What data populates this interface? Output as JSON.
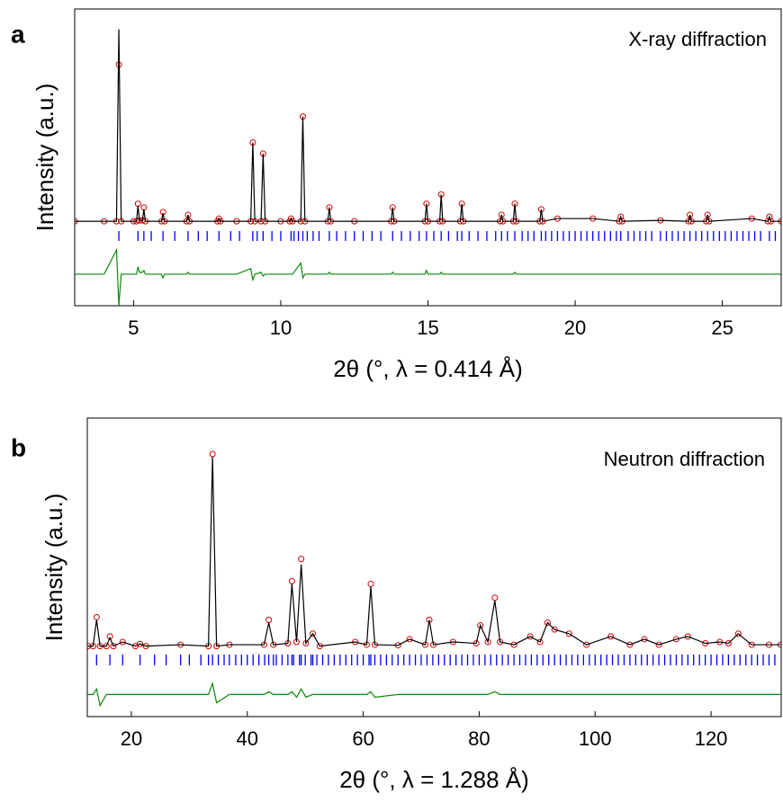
{
  "chart_data": [
    {
      "type": "line",
      "panel_label": "a",
      "title": "X-ray diffraction",
      "xlabel": "2θ (°, λ = 0.414 Å)",
      "ylabel": "Intensity (a.u.)",
      "xlim": [
        3,
        27
      ],
      "ylim": [
        -45,
        115
      ],
      "xticks": [
        5,
        10,
        15,
        20,
        25
      ],
      "x": [
        3,
        4,
        4.42,
        4.5,
        4.58,
        5,
        5.1,
        5.15,
        5.2,
        5.3,
        5.35,
        5.4,
        5.95,
        6,
        6.05,
        6.8,
        6.85,
        6.9,
        7.85,
        7.9,
        7.95,
        8.5,
        8.98,
        9.05,
        9.12,
        9.33,
        9.4,
        9.47,
        10,
        10.3,
        10.35,
        10.4,
        10.68,
        10.75,
        10.82,
        11.6,
        11.65,
        11.7,
        12.5,
        13.75,
        13.8,
        13.85,
        14.9,
        14.95,
        15,
        15.4,
        15.45,
        15.5,
        16.1,
        16.15,
        16.2,
        17.45,
        17.5,
        17.55,
        17.9,
        17.95,
        18,
        18.8,
        18.85,
        18.9,
        19.4,
        20.6,
        21.5,
        21.55,
        21.6,
        22.9,
        23.85,
        23.9,
        23.95,
        24.45,
        24.5,
        24.55,
        26,
        26.55,
        26.6,
        26.65,
        27
      ],
      "series": [
        {
          "style": "markers",
          "color": "#d40000",
          "values": [
            0.5,
            0.5,
            0.5,
            85,
            0.5,
            0.5,
            0.5,
            10,
            1,
            1,
            8,
            0.5,
            0.5,
            5.5,
            0.5,
            0.5,
            4,
            0.5,
            0.5,
            2,
            0.5,
            0.5,
            0.5,
            43,
            0.5,
            0.5,
            37,
            0.5,
            0.5,
            0.5,
            2,
            0.5,
            0.5,
            57,
            0.5,
            0.5,
            8,
            0.5,
            0.5,
            0.5,
            8,
            0.5,
            0.5,
            10,
            0.5,
            0.5,
            15,
            0.5,
            0.5,
            10,
            0.5,
            0.5,
            4,
            0.5,
            0.5,
            10,
            0.5,
            0.5,
            7,
            0.5,
            2,
            2,
            0.5,
            3,
            0.5,
            1,
            0.5,
            4,
            0.5,
            0.5,
            4,
            0.5,
            2,
            0.5,
            3,
            0.5,
            0.5
          ]
        },
        {
          "style": "line",
          "color": "#000000",
          "values": [
            0.5,
            0.5,
            0.5,
            104,
            0.5,
            0.5,
            0.5,
            9,
            1,
            1,
            7,
            0.5,
            0.5,
            5,
            0.5,
            0.5,
            4,
            0.5,
            0.5,
            2,
            0.5,
            0.5,
            0.5,
            43,
            0.5,
            0.5,
            37,
            0.5,
            0.5,
            0.5,
            2,
            0.5,
            0.5,
            57,
            0.5,
            0.5,
            8,
            0.5,
            0.5,
            0.5,
            8,
            0.5,
            0.5,
            10,
            0.5,
            0.5,
            15,
            0.5,
            0.5,
            10,
            0.5,
            0.5,
            4,
            0.5,
            0.5,
            10,
            0.5,
            0.5,
            7,
            0.5,
            2,
            2,
            0.5,
            3,
            0.5,
            1,
            0.5,
            4,
            0.5,
            0.5,
            4,
            0.5,
            2,
            0.5,
            3,
            0.5,
            0.5
          ]
        },
        {
          "style": "line",
          "color": "#0a8a0a",
          "values": [
            -28,
            -28,
            -15,
            -45,
            -28,
            -28,
            -28,
            -24,
            -27,
            -27,
            -26,
            -28,
            -28,
            -30,
            -28,
            -28,
            -27,
            -28,
            -28,
            -28,
            -28,
            -28,
            -25,
            -31,
            -28,
            -27,
            -29,
            -28,
            -28,
            -28,
            -28,
            -28,
            -22,
            -30,
            -28,
            -28,
            -27,
            -28,
            -28,
            -28,
            -27,
            -28,
            -28,
            -26,
            -28,
            -28,
            -27,
            -28,
            -28,
            -28,
            -28,
            -28,
            -28,
            -28,
            -28,
            -27,
            -28,
            -28,
            -28,
            -28,
            -28,
            -28,
            -28,
            -28,
            -28,
            -28,
            -28,
            -28,
            -28,
            -28,
            -28,
            -28,
            -28,
            -28,
            -28,
            -28,
            -28
          ]
        }
      ],
      "reflections": {
        "color": "#0000ff",
        "x": [
          4.5,
          5.15,
          5.35,
          5.6,
          6,
          6.4,
          6.85,
          7.2,
          7.5,
          7.9,
          8.3,
          8.6,
          9.05,
          9.2,
          9.4,
          9.7,
          10,
          10.35,
          10.45,
          10.6,
          10.75,
          10.9,
          11.1,
          11.3,
          11.65,
          11.9,
          12.2,
          12.5,
          12.8,
          13.1,
          13.4,
          13.8,
          14.1,
          14.4,
          14.7,
          14.95,
          15.2,
          15.45,
          15.7,
          16,
          16.15,
          16.4,
          16.7,
          17,
          17.3,
          17.5,
          17.7,
          17.95,
          18.2,
          18.4,
          18.6,
          18.85,
          19,
          19.2,
          19.4,
          19.6,
          19.8,
          20,
          20.2,
          20.4,
          20.6,
          20.8,
          21,
          21.2,
          21.4,
          21.55,
          21.8,
          22,
          22.2,
          22.4,
          22.6,
          22.9,
          23.1,
          23.3,
          23.5,
          23.7,
          23.9,
          24.1,
          24.3,
          24.5,
          24.7,
          24.9,
          25.1,
          25.3,
          25.5,
          25.7,
          25.9,
          26.1,
          26.3,
          26.6,
          26.8
        ]
      }
    },
    {
      "type": "line",
      "panel_label": "b",
      "title": "Neutron diffraction",
      "xlabel": "2θ (°, λ = 1.288 Å)",
      "ylabel": "Intensity (a.u.)",
      "xlim": [
        12.4,
        132.1
      ],
      "ylim": [
        -25,
        83
      ],
      "xticks": [
        20,
        40,
        60,
        80,
        100,
        120
      ],
      "x": [
        12.5,
        13.4,
        14,
        14.6,
        15.7,
        16.3,
        16.9,
        18.5,
        20.7,
        21.5,
        22.5,
        28.5,
        33.3,
        34,
        34.7,
        36.9,
        42.9,
        43.7,
        44.5,
        47,
        47.7,
        48.5,
        49.3,
        50.1,
        51.3,
        52.5,
        58.6,
        60.6,
        61.3,
        62,
        66,
        68,
        70.7,
        71.4,
        72.1,
        75.5,
        79.5,
        80.2,
        81.5,
        82.7,
        83.6,
        86,
        88.8,
        90.5,
        91.8,
        93,
        95.5,
        98.5,
        102.7,
        106,
        108.5,
        111,
        114,
        116,
        119,
        121.5,
        123,
        124.7,
        127,
        130,
        132
      ],
      "series": [
        {
          "style": "markers",
          "color": "#d40000",
          "values": [
            0.5,
            0.5,
            11,
            0.5,
            0.5,
            4,
            0.5,
            2,
            0.5,
            1.3,
            0.5,
            1,
            0.5,
            70,
            0.5,
            1,
            1,
            10,
            1,
            1.5,
            24,
            2,
            32,
            1.5,
            5,
            0.5,
            2,
            1,
            23,
            1,
            0.8,
            3,
            1,
            10,
            1,
            2,
            1.5,
            8,
            2,
            18,
            2,
            1,
            4,
            2,
            9,
            6.5,
            5,
            1,
            4,
            1,
            3,
            1,
            3,
            4,
            1.5,
            2,
            1.5,
            5,
            1,
            1,
            1
          ]
        },
        {
          "style": "line",
          "color": "#000000",
          "values": [
            0.5,
            0.5,
            10,
            0.5,
            0.5,
            3.5,
            0.5,
            2,
            0.5,
            1.3,
            0.5,
            1,
            0.5,
            69,
            0.5,
            1,
            1,
            9,
            1,
            1.5,
            23,
            2,
            30,
            1.5,
            5,
            0.5,
            2,
            1,
            22,
            1,
            0.8,
            3,
            1,
            10,
            1,
            2,
            1.5,
            8,
            2,
            17,
            2,
            1,
            4,
            2,
            9,
            6.5,
            5,
            1,
            4,
            1,
            3,
            1,
            3,
            4,
            1.5,
            2,
            1.5,
            5,
            1,
            1,
            1
          ]
        },
        {
          "style": "line",
          "color": "#0a8a0a",
          "values": [
            -17,
            -17,
            -15,
            -21,
            -17,
            -17,
            -17,
            -17,
            -17,
            -17,
            -17,
            -17,
            -17,
            -13,
            -20,
            -17,
            -17,
            -16,
            -17,
            -17,
            -16,
            -18,
            -15,
            -18,
            -17,
            -17,
            -17,
            -17,
            -16,
            -18,
            -17,
            -17,
            -17,
            -17,
            -17,
            -17,
            -17,
            -17,
            -17,
            -16,
            -17,
            -17,
            -17,
            -17,
            -17,
            -17,
            -17,
            -17,
            -17,
            -17,
            -17,
            -17,
            -17,
            -17,
            -17,
            -17,
            -17,
            -17,
            -17,
            -17,
            -17
          ]
        }
      ],
      "reflections": {
        "color": "#0000ff",
        "x": [
          14,
          16.3,
          18.5,
          21.5,
          24,
          26,
          28.5,
          30,
          32,
          33.3,
          34,
          35,
          36,
          36.9,
          38,
          39,
          40,
          41,
          42,
          43,
          43.7,
          44.5,
          45,
          46,
          47,
          47.7,
          48,
          49,
          49.3,
          50,
          51,
          51.3,
          52,
          53,
          54,
          55,
          56,
          57,
          58,
          59,
          60,
          61,
          61.3,
          62,
          63,
          64,
          65,
          66,
          67,
          68,
          69,
          70,
          71,
          72,
          73,
          74,
          75,
          76,
          77,
          78,
          79,
          80,
          81,
          82,
          83,
          84,
          85,
          86,
          87,
          88,
          89,
          90,
          91,
          92,
          93,
          94,
          95,
          96,
          97,
          98,
          99,
          100,
          101,
          102,
          103,
          104,
          105,
          106,
          107,
          108,
          109,
          110,
          111,
          112,
          113,
          114,
          115,
          116,
          117,
          118,
          119,
          120,
          121,
          122,
          123,
          124,
          125,
          126,
          127,
          128,
          129,
          130,
          131
        ]
      }
    }
  ]
}
